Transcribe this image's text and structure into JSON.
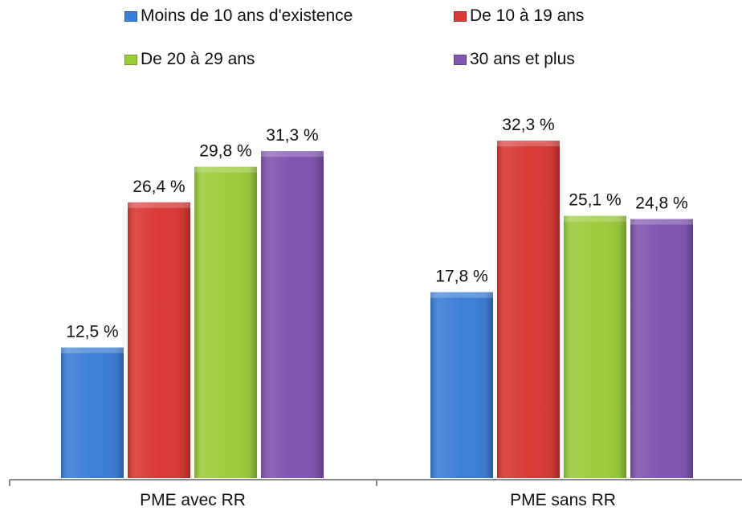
{
  "chart_data": {
    "type": "bar",
    "categories": [
      "PME avec RR",
      "PME sans RR"
    ],
    "series": [
      {
        "name": "Moins de 10 ans d'existence",
        "color": "#3d7fd6",
        "values": [
          12.5,
          17.8
        ],
        "labels": [
          "12,5 %",
          "17,8 %"
        ]
      },
      {
        "name": "De 10 à 19 ans",
        "color": "#d93a36",
        "values": [
          26.4,
          32.3
        ],
        "labels": [
          "26,4 %",
          "32,3 %"
        ]
      },
      {
        "name": "De 20 à 29 ans",
        "color": "#9ccc3c",
        "values": [
          29.8,
          25.1
        ],
        "labels": [
          "29,8 %",
          "25,1 %"
        ]
      },
      {
        "name": "30 ans et plus",
        "color": "#8056b0",
        "values": [
          31.3,
          24.8
        ],
        "labels": [
          "31,3 %",
          "24,8 %"
        ]
      }
    ],
    "title": "",
    "xlabel": "",
    "ylabel": "",
    "ylim": [
      0,
      40
    ],
    "grid": false,
    "legend": "top"
  }
}
